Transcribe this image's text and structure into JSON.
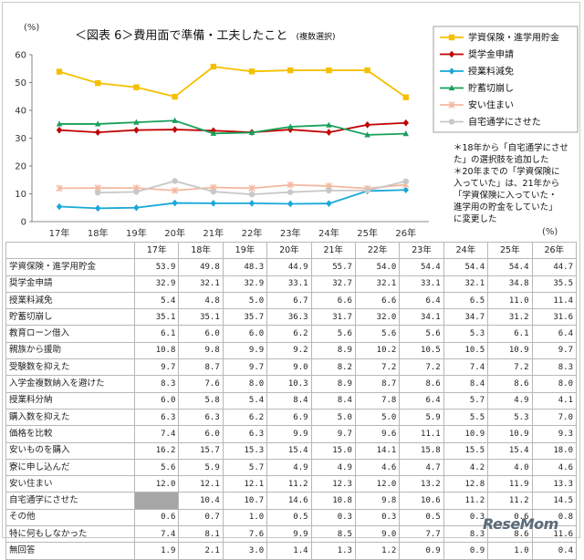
{
  "chart_data": {
    "type": "line",
    "title": "＜図表 6＞費用面で準備・工夫したこと",
    "title_note": "(複数選択)",
    "ylabel": "(%)",
    "x_unit": "(%)",
    "ylim": [
      0,
      60
    ],
    "yticks": [
      0,
      10,
      20,
      30,
      40,
      50,
      60
    ],
    "grid": false,
    "legend_position": "top-right",
    "categories": [
      "17年",
      "18年",
      "19年",
      "20年",
      "21年",
      "22年",
      "23年",
      "24年",
      "25年",
      "26年"
    ],
    "series": [
      {
        "name": "学資保険・進学用貯金",
        "color": "#f5c000",
        "marker": "square",
        "values": [
          53.9,
          49.8,
          48.3,
          44.9,
          55.7,
          54.0,
          54.4,
          54.4,
          54.4,
          44.7
        ]
      },
      {
        "name": "奨学金申請",
        "color": "#c00000",
        "marker": "diamond",
        "values": [
          32.9,
          32.1,
          32.9,
          33.1,
          32.7,
          32.1,
          33.1,
          32.1,
          34.8,
          35.5
        ]
      },
      {
        "name": "授業料減免",
        "color": "#18a8d8",
        "marker": "diamond",
        "values": [
          5.4,
          4.8,
          5.0,
          6.7,
          6.6,
          6.6,
          6.4,
          6.5,
          11.0,
          11.4
        ]
      },
      {
        "name": "貯蓄切崩し",
        "color": "#17a05a",
        "marker": "triangle",
        "values": [
          35.1,
          35.1,
          35.7,
          36.3,
          31.7,
          32.0,
          34.1,
          34.7,
          31.2,
          31.6
        ]
      },
      {
        "name": "安い住まい",
        "color": "#f4b8a0",
        "marker": "x",
        "values": [
          12.0,
          12.1,
          12.1,
          11.2,
          12.3,
          12.0,
          13.2,
          12.8,
          11.9,
          13.3
        ]
      },
      {
        "name": "自宅通学にさせた",
        "color": "#c8c8c8",
        "marker": "circle",
        "values": [
          null,
          10.4,
          10.7,
          14.6,
          10.8,
          9.8,
          10.6,
          11.2,
          11.2,
          14.5
        ]
      }
    ],
    "annotations": [
      "＊18年から「自宅通学にさせた」の選択肢を追加した",
      "＊20年までの「学資保険に入っていた」は、21年から「学資保険に入っていた・進学用の貯金をしていた」に変更した"
    ]
  },
  "notes": [
    "＊18年から「自宅通学にさせ",
    "た」の選択肢を追加した",
    "＊20年までの「学資保険に",
    "入っていた」は、21年から",
    "「学資保険に入っていた・",
    "進学用の貯金をしていた」",
    "に変更した"
  ],
  "table": {
    "header": [
      "",
      "17年",
      "18年",
      "19年",
      "20年",
      "21年",
      "22年",
      "23年",
      "24年",
      "25年",
      "26年"
    ],
    "rows": [
      {
        "label": "学資保険・進学用貯金",
        "values": [
          "53.9",
          "49.8",
          "48.3",
          "44.9",
          "55.7",
          "54.0",
          "54.4",
          "54.4",
          "54.4",
          "44.7"
        ]
      },
      {
        "label": "奨学金申請",
        "values": [
          "32.9",
          "32.1",
          "32.9",
          "33.1",
          "32.7",
          "32.1",
          "33.1",
          "32.1",
          "34.8",
          "35.5"
        ]
      },
      {
        "label": "授業料減免",
        "values": [
          "5.4",
          "4.8",
          "5.0",
          "6.7",
          "6.6",
          "6.6",
          "6.4",
          "6.5",
          "11.0",
          "11.4"
        ]
      },
      {
        "label": "貯蓄切崩し",
        "values": [
          "35.1",
          "35.1",
          "35.7",
          "36.3",
          "31.7",
          "32.0",
          "34.1",
          "34.7",
          "31.2",
          "31.6"
        ]
      },
      {
        "label": "教育ローン借入",
        "values": [
          "6.1",
          "6.0",
          "6.0",
          "6.2",
          "5.6",
          "5.6",
          "5.6",
          "5.3",
          "6.1",
          "6.4"
        ]
      },
      {
        "label": "親族から援助",
        "values": [
          "10.8",
          "9.8",
          "9.9",
          "9.2",
          "8.9",
          "10.2",
          "10.5",
          "10.5",
          "10.9",
          "9.7"
        ]
      },
      {
        "label": "受験数を抑えた",
        "values": [
          "9.7",
          "8.7",
          "9.7",
          "9.0",
          "8.2",
          "7.2",
          "7.2",
          "7.4",
          "7.2",
          "8.3"
        ]
      },
      {
        "label": "入学金複数納入を避けた",
        "values": [
          "8.3",
          "7.6",
          "8.0",
          "10.3",
          "8.9",
          "8.7",
          "8.6",
          "8.4",
          "8.6",
          "8.0"
        ]
      },
      {
        "label": "授業料分納",
        "values": [
          "6.0",
          "5.8",
          "5.4",
          "8.4",
          "8.4",
          "7.8",
          "6.4",
          "5.7",
          "4.9",
          "4.1"
        ]
      },
      {
        "label": "購入数を抑えた",
        "values": [
          "6.3",
          "6.3",
          "6.2",
          "6.9",
          "5.0",
          "5.0",
          "5.9",
          "5.5",
          "5.3",
          "7.0"
        ]
      },
      {
        "label": "価格を比較",
        "values": [
          "7.4",
          "6.0",
          "6.3",
          "9.9",
          "9.7",
          "9.6",
          "11.1",
          "10.9",
          "10.9",
          "9.3"
        ]
      },
      {
        "label": "安いものを購入",
        "values": [
          "16.2",
          "15.7",
          "15.3",
          "15.4",
          "15.0",
          "14.1",
          "15.8",
          "15.5",
          "15.4",
          "18.0"
        ]
      },
      {
        "label": "寮に申し込んだ",
        "values": [
          "5.6",
          "5.9",
          "5.7",
          "4.9",
          "4.9",
          "4.6",
          "4.7",
          "4.2",
          "4.0",
          "4.6"
        ]
      },
      {
        "label": "安い住まい",
        "values": [
          "12.0",
          "12.1",
          "12.1",
          "11.2",
          "12.3",
          "12.0",
          "13.2",
          "12.8",
          "11.9",
          "13.3"
        ]
      },
      {
        "label": "自宅通学にさせた",
        "values": [
          null,
          "10.4",
          "10.7",
          "14.6",
          "10.8",
          "9.8",
          "10.6",
          "11.2",
          "11.2",
          "14.5"
        ]
      },
      {
        "label": "その他",
        "values": [
          "0.6",
          "0.7",
          "1.0",
          "0.5",
          "0.3",
          "0.3",
          "0.5",
          "0.3",
          "0.6",
          "0.8"
        ]
      },
      {
        "label": "特に何もしなかった",
        "values": [
          "7.4",
          "8.1",
          "7.6",
          "9.9",
          "8.5",
          "9.0",
          "7.7",
          "8.3",
          "8.6",
          "11.6"
        ]
      },
      {
        "label": "無回答",
        "values": [
          "1.9",
          "2.1",
          "3.0",
          "1.4",
          "1.3",
          "1.2",
          "0.9",
          "0.9",
          "1.0",
          "0.4"
        ]
      }
    ]
  },
  "watermark": "ReseMom"
}
